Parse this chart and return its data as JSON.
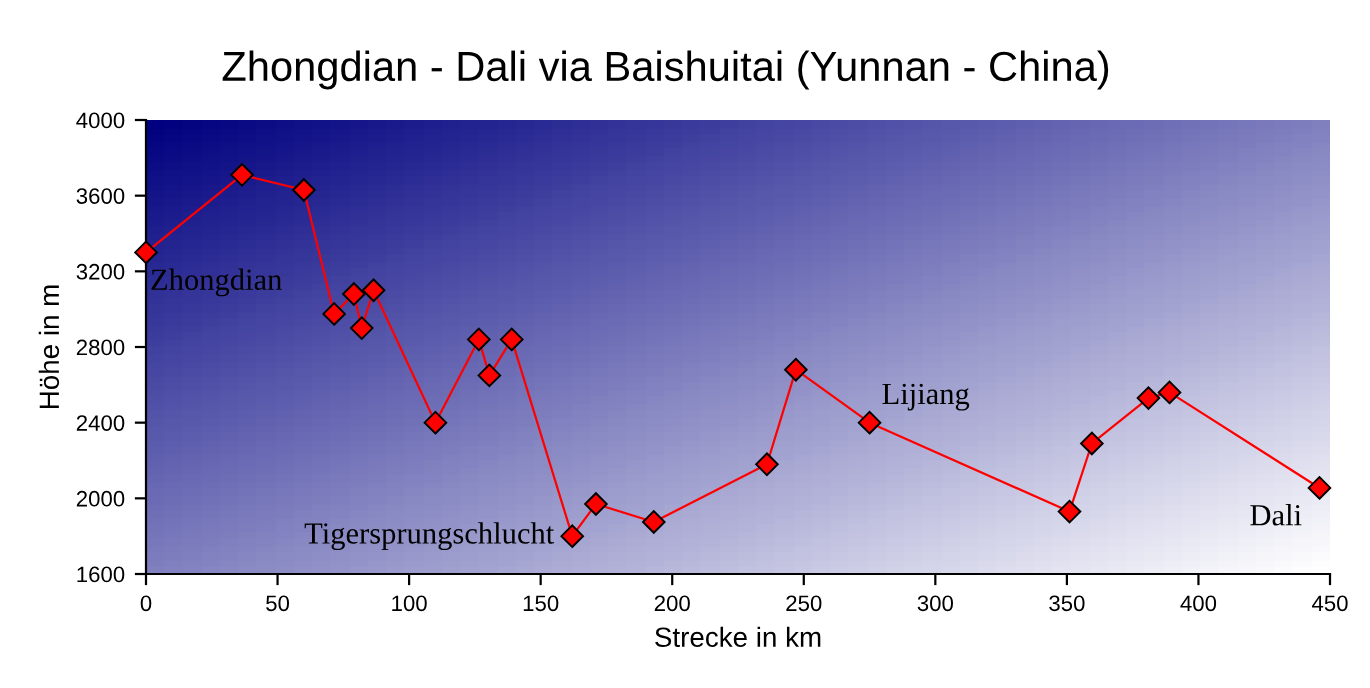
{
  "chart_data": {
    "type": "line",
    "title": "Zhongdian - Dali via Baishuitai (Yunnan - China)",
    "xlabel": "Strecke in km",
    "ylabel": "Höhe in m",
    "x": [
      0,
      36.5,
      60,
      71.5,
      79,
      82,
      86.5,
      110,
      126.5,
      130.5,
      139,
      162,
      171,
      193,
      236,
      247,
      275,
      351,
      359.5,
      381,
      389,
      446
    ],
    "series": [
      {
        "color": "#ff0000",
        "values": [
          3300,
          3710,
          3630,
          2975,
          3080,
          2900,
          3100,
          2400,
          2840,
          2650,
          2840,
          1800,
          1970,
          1875,
          2180,
          2680,
          2400,
          1930,
          2290,
          2530,
          2560,
          2055
        ]
      }
    ],
    "marker": "diamond",
    "line_style": "solid",
    "grid": false,
    "legend": false,
    "xlim": [
      0,
      450
    ],
    "xticks": [
      0,
      50,
      100,
      150,
      200,
      250,
      300,
      350,
      400,
      450
    ],
    "ylim": [
      1600,
      4000
    ],
    "yticks": [
      1600,
      2000,
      2400,
      2800,
      3200,
      3600,
      4000
    ],
    "annotations": [
      {
        "text": "Zhongdian",
        "x": 0,
        "y": 3300
      },
      {
        "text": "Tigersprungschlucht",
        "x": 162,
        "y": 1800
      },
      {
        "text": "Lijiang",
        "x": 275,
        "y": 2400
      },
      {
        "text": "Dali",
        "x": 446,
        "y": 2055
      }
    ]
  }
}
